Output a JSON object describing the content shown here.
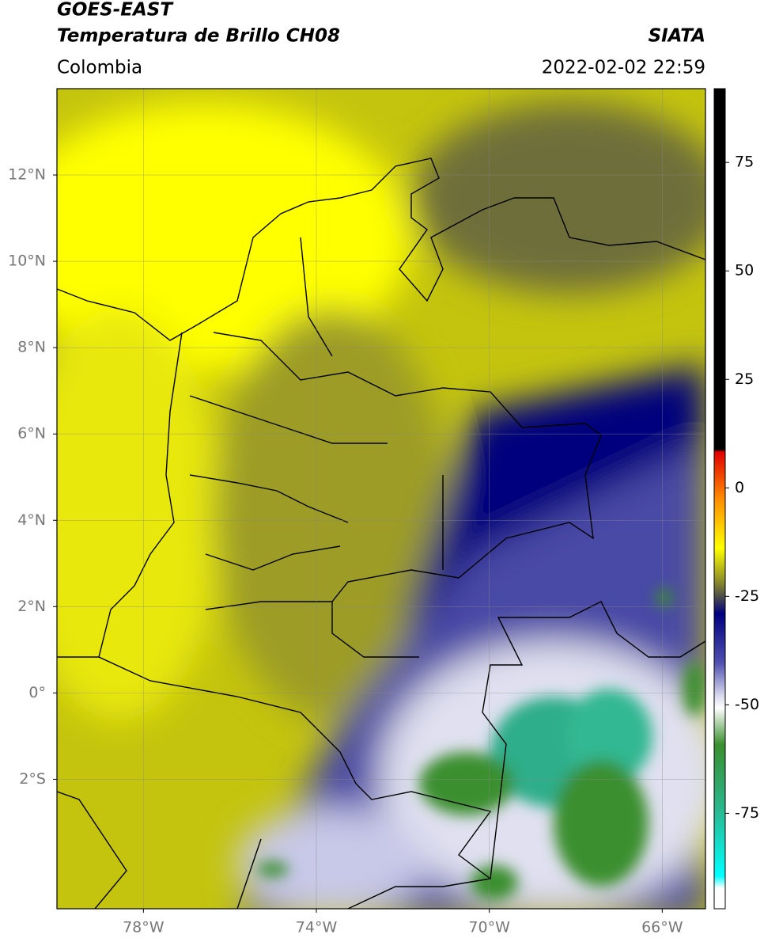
{
  "header": {
    "title": "GOES-EAST",
    "subtitle": "Temperatura de Brillo CH08",
    "source": "SIATA",
    "region": "Colombia",
    "datetime": "2022-02-02 22:59"
  },
  "map": {
    "lon_lim": [
      -80,
      -65
    ],
    "lat_lim": [
      -5,
      14
    ],
    "lat_ticks": [
      {
        "value": 12,
        "label": "12°N"
      },
      {
        "value": 10,
        "label": "10°N"
      },
      {
        "value": 8,
        "label": "8°N"
      },
      {
        "value": 6,
        "label": "6°N"
      },
      {
        "value": 4,
        "label": "4°N"
      },
      {
        "value": 2,
        "label": "2°N"
      },
      {
        "value": 0,
        "label": "0°"
      },
      {
        "value": -2,
        "label": "2°S"
      }
    ],
    "lon_ticks": [
      {
        "value": -78,
        "label": "78°W"
      },
      {
        "value": -74,
        "label": "74°W"
      },
      {
        "value": -70,
        "label": "70°W"
      },
      {
        "value": -66,
        "label": "66°W"
      }
    ]
  },
  "colorbar": {
    "lim": [
      -97,
      92
    ],
    "ticks": [
      75,
      50,
      25,
      0,
      -25,
      -50,
      -75
    ]
  }
}
